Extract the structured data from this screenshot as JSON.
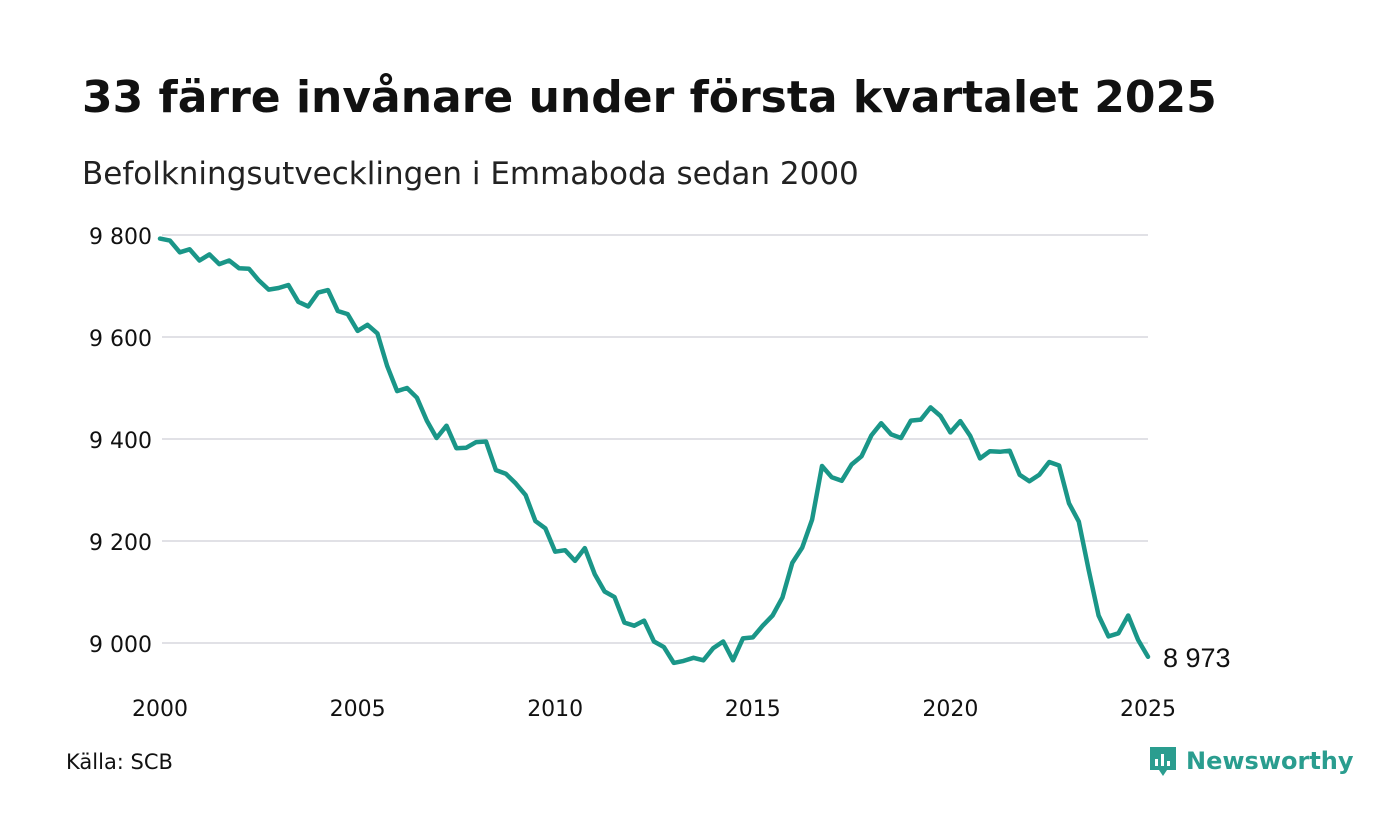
{
  "title": "33 färre invånare under första kvartalet 2025",
  "subtitle": "Befolkningsutvecklingen i Emmaboda sedan 2000",
  "source": "Källa: SCB",
  "brand": {
    "name": "Newsworthy",
    "icon": "newsworthy-logo-icon",
    "color": "#2a9d8f"
  },
  "chart_data": {
    "type": "line",
    "title": "33 färre invånare under första kvartalet 2025",
    "subtitle": "Befolkningsutvecklingen i Emmaboda sedan 2000",
    "xlabel": "",
    "ylabel": "",
    "xlim": [
      2000,
      2025
    ],
    "ylim": [
      8940,
      9810
    ],
    "x_ticks": [
      2000,
      2005,
      2010,
      2015,
      2020,
      2025
    ],
    "x_tick_labels": [
      "2000",
      "2005",
      "2010",
      "2015",
      "2020",
      "2025"
    ],
    "y_ticks": [
      9000,
      9200,
      9400,
      9600,
      9800
    ],
    "y_tick_labels": [
      "9 000",
      "9 200",
      "9 400",
      "9 600",
      "9 800"
    ],
    "grid": "horizontal",
    "legend": "none",
    "color": "#1a9688",
    "end_label": "8 973",
    "series": [
      {
        "x": [
          2000.0,
          2000.25,
          2000.5,
          2000.75,
          2001.0,
          2001.25,
          2001.5,
          2001.75,
          2002.0,
          2002.25,
          2002.5,
          2002.75,
          2003.0,
          2003.25,
          2003.5,
          2003.75,
          2004.0,
          2004.25,
          2004.5,
          2004.75,
          2005.0,
          2005.25,
          2005.5,
          2005.75,
          2006.0,
          2006.25,
          2006.5,
          2006.75,
          2007.0,
          2007.25,
          2007.5,
          2007.75,
          2008.0,
          2008.25,
          2008.5,
          2008.75,
          2009.0,
          2009.25,
          2009.5,
          2009.75,
          2010.0,
          2010.25,
          2010.5,
          2010.75,
          2011.0,
          2011.25,
          2011.5,
          2011.75,
          2012.0,
          2012.25,
          2012.5,
          2012.75,
          2013.0,
          2013.25,
          2013.5,
          2013.75,
          2014.0,
          2014.25,
          2014.5,
          2014.75,
          2015.0,
          2015.25,
          2015.5,
          2015.75,
          2016.0,
          2016.25,
          2016.5,
          2016.75,
          2017.0,
          2017.25,
          2017.5,
          2017.75,
          2018.0,
          2018.25,
          2018.5,
          2018.75,
          2019.0,
          2019.25,
          2019.5,
          2019.75,
          2020.0,
          2020.25,
          2020.5,
          2020.75,
          2021.0,
          2021.25,
          2021.5,
          2021.75,
          2022.0,
          2022.25,
          2022.5,
          2022.75,
          2023.0,
          2023.25,
          2023.5,
          2023.75,
          2024.0,
          2024.25,
          2024.5,
          2024.75,
          2025.0
        ],
        "y": [
          9793,
          9789,
          9766,
          9772,
          9750,
          9762,
          9743,
          9750,
          9735,
          9734,
          9711,
          9693,
          9696,
          9702,
          9669,
          9660,
          9687,
          9692,
          9651,
          9645,
          9612,
          9624,
          9607,
          9543,
          9494,
          9500,
          9481,
          9436,
          9402,
          9426,
          9382,
          9383,
          9394,
          9395,
          9339,
          9332,
          9313,
          9290,
          9239,
          9225,
          9179,
          9182,
          9161,
          9186,
          9135,
          9101,
          9090,
          9040,
          9034,
          9044,
          9003,
          8992,
          8961,
          8965,
          8971,
          8966,
          8990,
          9003,
          8966,
          9009,
          9011,
          9034,
          9054,
          9089,
          9157,
          9187,
          9242,
          9347,
          9325,
          9318,
          9350,
          9366,
          9407,
          9431,
          9409,
          9402,
          9436,
          9438,
          9462,
          9445,
          9413,
          9435,
          9406,
          9362,
          9376,
          9375,
          9377,
          9330,
          9317,
          9330,
          9355,
          9348,
          9274,
          9238,
          9143,
          9054,
          9013,
          9019,
          9054,
          9006,
          8973
        ]
      }
    ]
  }
}
